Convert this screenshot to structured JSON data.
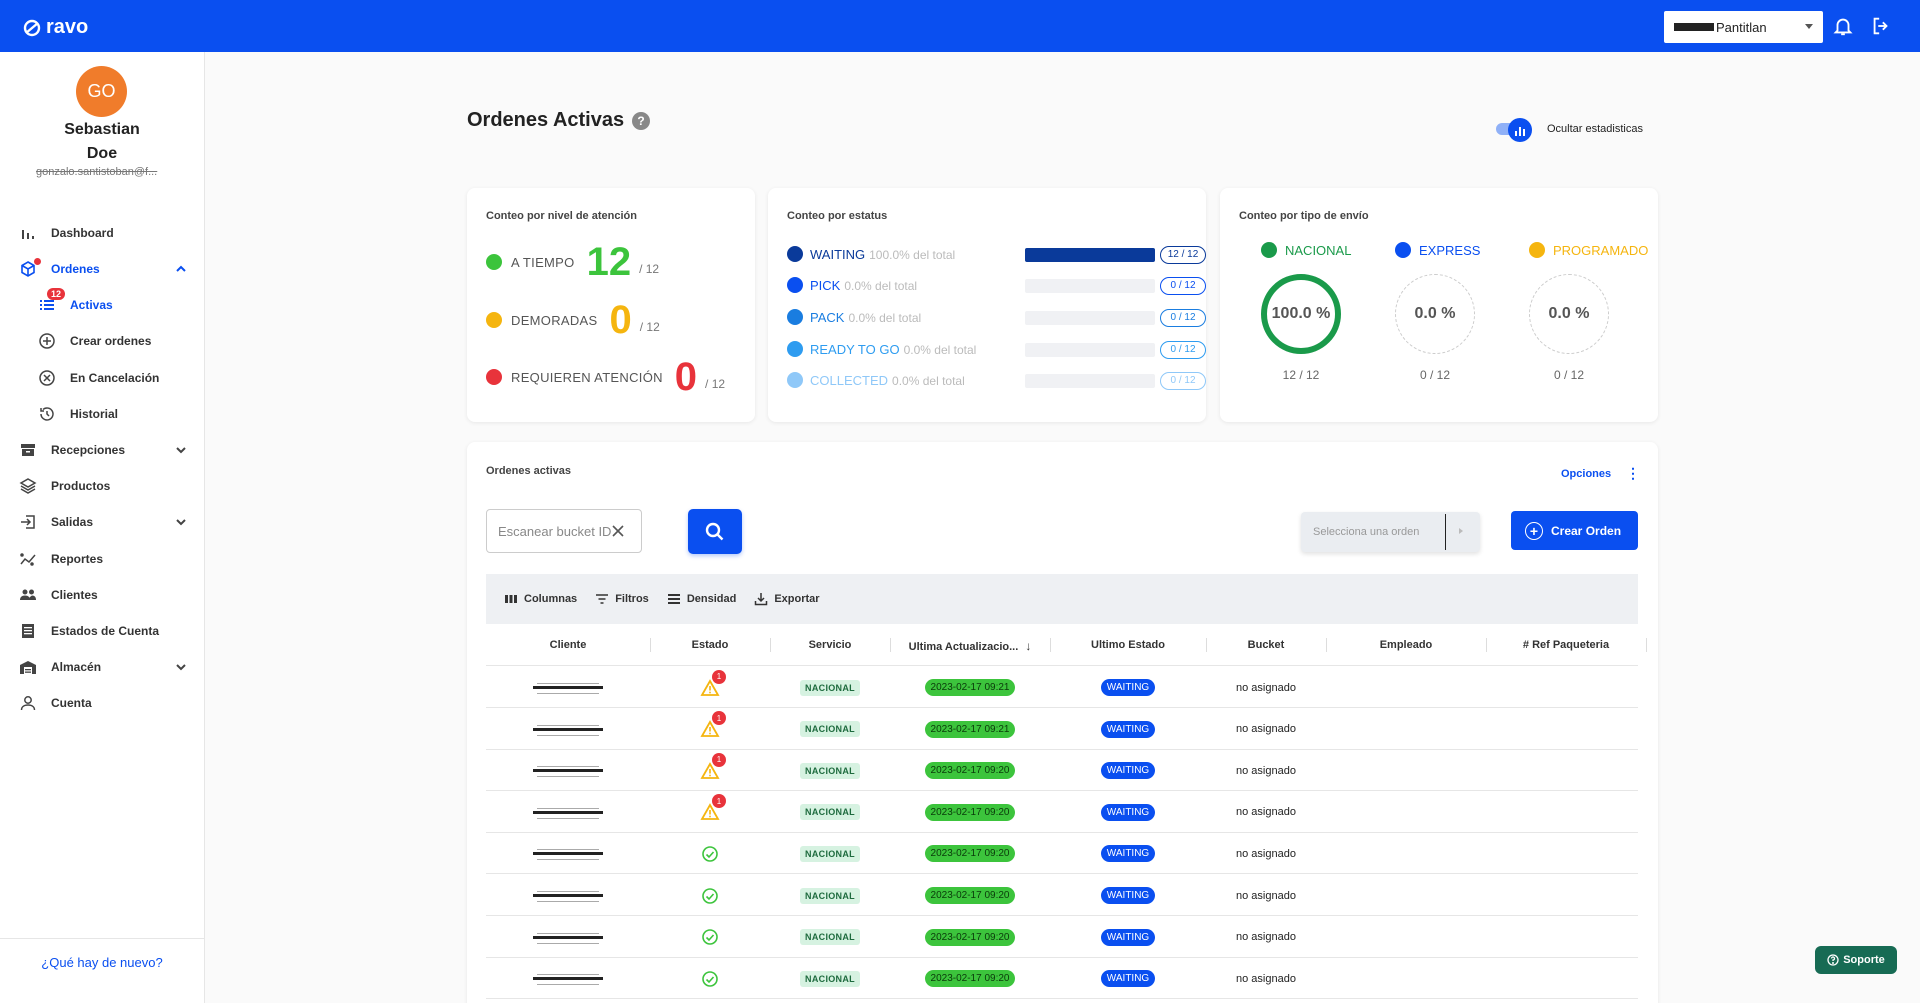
{
  "app": {
    "logo_text": "ravo"
  },
  "topbar": {
    "branch_value": "Pantitlan"
  },
  "user": {
    "initials": "GO",
    "first_name": "Sebastian",
    "last_name": "Doe",
    "email": "gonzalo.santistoban@f..."
  },
  "sidebar": {
    "items": [
      {
        "label": "Dashboard"
      },
      {
        "label": "Ordenes"
      },
      {
        "label": "Activas",
        "badge": "12"
      },
      {
        "label": "Crear ordenes"
      },
      {
        "label": "En Cancelación"
      },
      {
        "label": "Historial"
      },
      {
        "label": "Recepciones"
      },
      {
        "label": "Productos"
      },
      {
        "label": "Salidas"
      },
      {
        "label": "Reportes"
      },
      {
        "label": "Clientes"
      },
      {
        "label": "Estados de Cuenta"
      },
      {
        "label": "Almacén"
      },
      {
        "label": "Cuenta"
      }
    ],
    "whats_new": "¿Qué hay de nuevo?"
  },
  "page": {
    "title": "Ordenes Activas",
    "help": "?",
    "toggle_label": "Ocultar estadisticas"
  },
  "attention": {
    "title": "Conteo por nivel de atención",
    "rows": [
      {
        "label": "A TIEMPO",
        "value": "12",
        "total": "/ 12",
        "color": "#3cc43c"
      },
      {
        "label": "DEMORADAS",
        "value": "0",
        "total": "/ 12",
        "color": "#f5b50f"
      },
      {
        "label": "REQUIEREN ATENCIÓN",
        "value": "0",
        "total": "/ 12",
        "color": "#e8333b"
      }
    ]
  },
  "status": {
    "title": "Conteo por estatus",
    "rows": [
      {
        "name": "WAITING",
        "pct": "100.0% del total",
        "count": "12 / 12",
        "fraction": 1.0,
        "color": "#0a3a9a"
      },
      {
        "name": "PICK",
        "pct": "0.0% del total",
        "count": "0 / 12",
        "fraction": 0,
        "color": "#0a4ff0"
      },
      {
        "name": "PACK",
        "pct": "0.0% del total",
        "count": "0 / 12",
        "fraction": 0,
        "color": "#1a7de0"
      },
      {
        "name": "READY TO GO",
        "pct": "0.0% del total",
        "count": "0 / 12",
        "fraction": 0,
        "color": "#2e9cf0"
      },
      {
        "name": "COLLECTED",
        "pct": "0.0% del total",
        "count": "0 / 12",
        "fraction": 0,
        "color": "#8fc8f8"
      }
    ]
  },
  "shipping": {
    "title": "Conteo por tipo de envío",
    "types": [
      {
        "name": "NACIONAL",
        "pct": "100.0 %",
        "count": "12 / 12",
        "color": "#1a9a4a"
      },
      {
        "name": "EXPRESS",
        "pct": "0.0 %",
        "count": "0 / 12",
        "color": "#0a4ff0"
      },
      {
        "name": "PROGRAMADO",
        "pct": "0.0 %",
        "count": "0 / 12",
        "color": "#f5b50f"
      }
    ]
  },
  "orders": {
    "title": "Ordenes activas",
    "options": "Opciones",
    "scan_placeholder": "Escanear bucket ID",
    "select_order": "Selecciona una orden",
    "create_order": "Crear Orden",
    "toolbar": {
      "columns": "Columnas",
      "filters": "Filtros",
      "density": "Densidad",
      "export": "Exportar"
    },
    "columns": [
      "Cliente",
      "Estado",
      "Servicio",
      "Ultima Actualizacio...",
      "Ultimo Estado",
      "Bucket",
      "Empleado",
      "# Ref Paqueteria"
    ],
    "rows": [
      {
        "estado": "warning",
        "alerts": "1",
        "servicio": "NACIONAL",
        "fecha": "2023-02-17 09:21",
        "ultimo_estado": "WAITING",
        "bucket": "no asignado"
      },
      {
        "estado": "warning",
        "alerts": "1",
        "servicio": "NACIONAL",
        "fecha": "2023-02-17 09:21",
        "ultimo_estado": "WAITING",
        "bucket": "no asignado"
      },
      {
        "estado": "warning",
        "alerts": "1",
        "servicio": "NACIONAL",
        "fecha": "2023-02-17 09:20",
        "ultimo_estado": "WAITING",
        "bucket": "no asignado"
      },
      {
        "estado": "warning",
        "alerts": "1",
        "servicio": "NACIONAL",
        "fecha": "2023-02-17 09:20",
        "ultimo_estado": "WAITING",
        "bucket": "no asignado"
      },
      {
        "estado": "ok",
        "alerts": "",
        "servicio": "NACIONAL",
        "fecha": "2023-02-17 09:20",
        "ultimo_estado": "WAITING",
        "bucket": "no asignado"
      },
      {
        "estado": "ok",
        "alerts": "",
        "servicio": "NACIONAL",
        "fecha": "2023-02-17 09:20",
        "ultimo_estado": "WAITING",
        "bucket": "no asignado"
      },
      {
        "estado": "ok",
        "alerts": "",
        "servicio": "NACIONAL",
        "fecha": "2023-02-17 09:20",
        "ultimo_estado": "WAITING",
        "bucket": "no asignado"
      },
      {
        "estado": "ok",
        "alerts": "",
        "servicio": "NACIONAL",
        "fecha": "2023-02-17 09:20",
        "ultimo_estado": "WAITING",
        "bucket": "no asignado"
      }
    ]
  },
  "support": {
    "label": "Soporte"
  }
}
